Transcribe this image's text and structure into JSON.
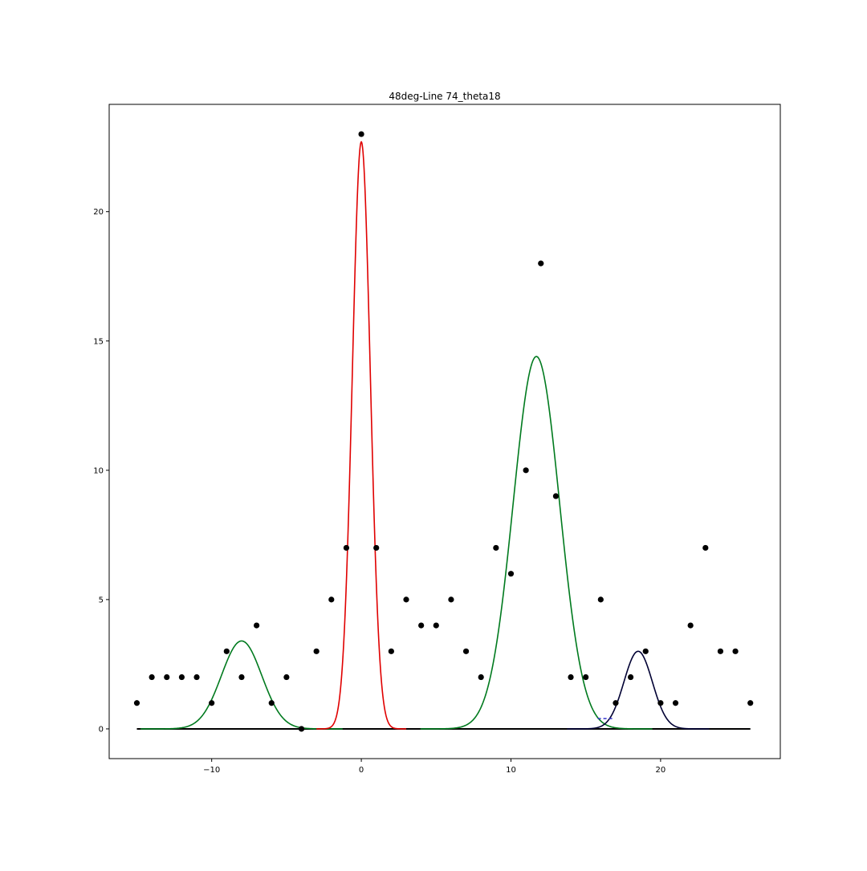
{
  "chart_data": {
    "type": "scatter",
    "title": "48deg-Line 74_theta18",
    "xlabel": "",
    "ylabel": "",
    "xlim": [
      -16.85,
      28
    ],
    "ylim": [
      -1.15,
      24.15
    ],
    "x_ticks": [
      -10,
      0,
      10,
      20
    ],
    "y_ticks": [
      0,
      5,
      10,
      15,
      20
    ],
    "grid": false,
    "points": {
      "color": "#000000",
      "x": [
        -15,
        -14,
        -13,
        -12,
        -11,
        -10,
        -9,
        -8,
        -7,
        -6,
        -5,
        -4,
        -3,
        -2,
        -1,
        0,
        1,
        2,
        3,
        4,
        5,
        6,
        7,
        8,
        9,
        10,
        11,
        12,
        13,
        14,
        15,
        16,
        17,
        18,
        19,
        20,
        21,
        22,
        23,
        24,
        25,
        26
      ],
      "y": [
        1,
        2,
        2,
        2,
        2,
        1,
        3,
        2,
        4,
        1,
        2,
        0,
        3,
        5,
        7,
        23,
        7,
        3,
        5,
        4,
        4,
        5,
        3,
        2,
        7,
        6,
        10,
        18,
        9,
        2,
        2,
        5,
        1,
        2,
        3,
        1,
        1,
        4,
        7,
        3,
        3,
        1
      ]
    },
    "baseline": {
      "color": "#000000",
      "y": 0,
      "x_range": [
        -15,
        26
      ]
    },
    "fit_curves": [
      {
        "color": "#007a1e",
        "amplitude": 3.4,
        "center": -8.0,
        "sigma": 1.35
      },
      {
        "color": "#e00000",
        "amplitude": 22.7,
        "center": 0.0,
        "sigma": 0.6
      },
      {
        "color": "#007a1e",
        "amplitude": 14.4,
        "center": 11.7,
        "sigma": 1.55
      },
      {
        "color": "#000033",
        "amplitude": 3.0,
        "center": 18.5,
        "sigma": 0.95
      }
    ],
    "dashed_segment": {
      "color": "#3333cc",
      "x": [
        15.8,
        16.8
      ],
      "y": [
        0.4,
        0.4
      ]
    }
  }
}
